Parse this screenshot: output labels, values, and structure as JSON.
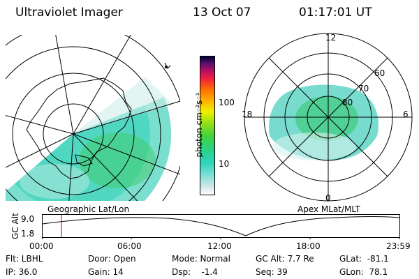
{
  "header": {
    "title": "Ultraviolet Imager",
    "date": "13 Oct 07",
    "time": "01:17:01 UT"
  },
  "colorbar": {
    "unit_label": "photon cm⁻²s⁻¹",
    "ticks": [
      "100",
      "10"
    ]
  },
  "left_map": {
    "label": "Geographic Lat/Lon"
  },
  "right_map": {
    "label": "Apex MLat/MLT",
    "mlt_labels": {
      "top": "12",
      "left": "18",
      "right": "6",
      "bottom": "0"
    },
    "lat_labels": [
      "60",
      "70",
      "80"
    ]
  },
  "timeline": {
    "ylabel": "GC Alt",
    "yticks": [
      "9.0",
      "1.8"
    ],
    "xticks": [
      "00:00",
      "06:00",
      "12:00",
      "18:00",
      "23:59"
    ],
    "marker_time": "01:17"
  },
  "info": {
    "flt": "Flt: LBHL",
    "ip": "IP: 36.0",
    "door": "Door: Open",
    "gain": "Gain: 14",
    "mode": "Mode: Normal",
    "dsp": "Dsp:    -1.4",
    "gcalt": "GC Alt: 7.7 Re",
    "seq": "Seq: 39",
    "glat": "GLat:  -81.1",
    "glon": "GLon:  78.1"
  },
  "colors": {
    "aurora_fill": "#38d8b8",
    "aurora_green": "#2ec63a",
    "marker": "#d02020"
  }
}
